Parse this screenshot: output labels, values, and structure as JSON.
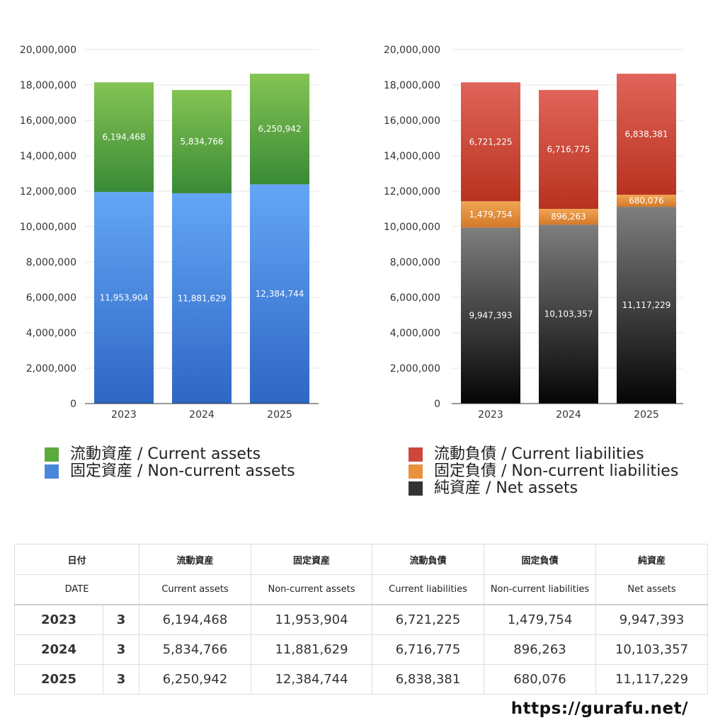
{
  "chart_data": [
    {
      "type": "bar",
      "stacked": true,
      "categories": [
        "2023",
        "2024",
        "2025"
      ],
      "ylim": [
        0,
        20000000
      ],
      "yticks": [
        0,
        2000000,
        4000000,
        6000000,
        8000000,
        10000000,
        12000000,
        14000000,
        16000000,
        18000000,
        20000000
      ],
      "ytick_labels": [
        "0",
        "2,000,000",
        "4,000,000",
        "6,000,000",
        "8,000,000",
        "10,000,000",
        "12,000,000",
        "14,000,000",
        "16,000,000",
        "18,000,000",
        "20,000,000"
      ],
      "grid": true,
      "legend_position": "bottom",
      "series": [
        {
          "name": "固定資産 / Non-current assets",
          "values": [
            11953904,
            11881629,
            12384744
          ],
          "labels": [
            "11,953,904",
            "11,881,629",
            "12,384,744"
          ],
          "color_top": "#64a6f6",
          "color_bottom": "#2e66c4"
        },
        {
          "name": "流動資産 / Current assets",
          "values": [
            6194468,
            5834766,
            6250942
          ],
          "labels": [
            "6,194,468",
            "5,834,766",
            "6,250,942"
          ],
          "color_top": "#84c454",
          "color_bottom": "#3a8a36"
        }
      ]
    },
    {
      "type": "bar",
      "stacked": true,
      "categories": [
        "2023",
        "2024",
        "2025"
      ],
      "ylim": [
        0,
        20000000
      ],
      "yticks": [
        0,
        2000000,
        4000000,
        6000000,
        8000000,
        10000000,
        12000000,
        14000000,
        16000000,
        18000000,
        20000000
      ],
      "ytick_labels": [
        "0",
        "2,000,000",
        "4,000,000",
        "6,000,000",
        "8,000,000",
        "10,000,000",
        "12,000,000",
        "14,000,000",
        "16,000,000",
        "18,000,000",
        "20,000,000"
      ],
      "grid": true,
      "legend_position": "bottom",
      "series": [
        {
          "name": "純資産 / Net assets",
          "values": [
            9947393,
            10103357,
            11117229
          ],
          "labels": [
            "9,947,393",
            "10,103,357",
            "11,117,229"
          ],
          "color_top": "#7e7e7e",
          "color_bottom": "#050505"
        },
        {
          "name": "固定負債 / Non-current liabilities",
          "values": [
            1479754,
            896263,
            680076
          ],
          "labels": [
            "1,479,754",
            "896,263",
            "680,076"
          ],
          "color_top": "#f0a552",
          "color_bottom": "#d4792a"
        },
        {
          "name": "流動負債 / Current liabilities",
          "values": [
            6721225,
            6716775,
            6838381
          ],
          "labels": [
            "6,721,225",
            "6,716,775",
            "6,838,381"
          ],
          "color_top": "#e0645a",
          "color_bottom": "#b8331f"
        }
      ]
    }
  ],
  "legend_left": [
    {
      "label": "流動資産 / Current assets",
      "color": "#5aaa3e"
    },
    {
      "label": "固定資産 / Non-current assets",
      "color": "#4a86dc"
    }
  ],
  "legend_right": [
    {
      "label": "流動負債 / Current liabilities",
      "color": "#d0463a"
    },
    {
      "label": "固定負債 / Non-current liabilities",
      "color": "#e8913e"
    },
    {
      "label": "純資産 / Net assets",
      "color": "#333333"
    }
  ],
  "table": {
    "head_jp": [
      "日付",
      "流動資産",
      "固定資産",
      "流動負債",
      "固定負債",
      "純資産"
    ],
    "head_en": [
      "DATE",
      "Current assets",
      "Non-current assets",
      "Current liabilities",
      "Non-current liabilities",
      "Net assets"
    ],
    "rows": [
      {
        "year": "2023",
        "month": "3",
        "values": [
          "6,194,468",
          "11,953,904",
          "6,721,225",
          "1,479,754",
          "9,947,393"
        ]
      },
      {
        "year": "2024",
        "month": "3",
        "values": [
          "5,834,766",
          "11,881,629",
          "6,716,775",
          "896,263",
          "10,103,357"
        ]
      },
      {
        "year": "2025",
        "month": "3",
        "values": [
          "6,250,942",
          "12,384,744",
          "6,838,381",
          "680,076",
          "11,117,229"
        ]
      }
    ]
  },
  "footer_url": "https://gurafu.net/"
}
